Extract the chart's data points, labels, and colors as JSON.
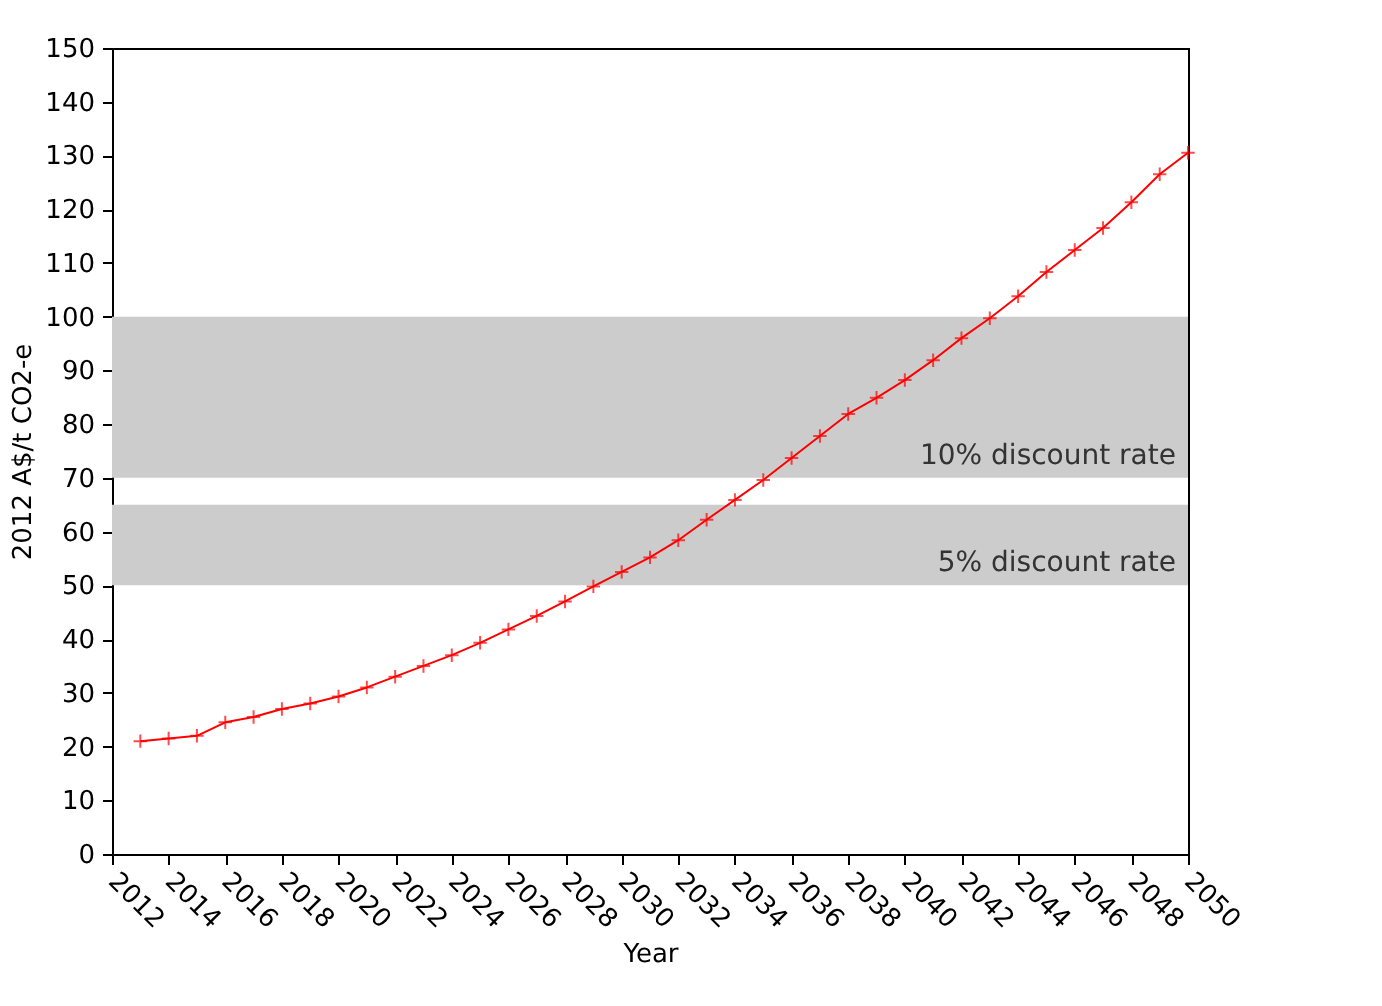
{
  "chart_data": {
    "type": "line",
    "xlabel": "Year",
    "ylabel": "2012 A$/t CO2-e",
    "x": [
      2013,
      2014,
      2015,
      2016,
      2017,
      2018,
      2019,
      2020,
      2021,
      2022,
      2023,
      2024,
      2025,
      2026,
      2027,
      2028,
      2029,
      2030,
      2031,
      2032,
      2033,
      2034,
      2035,
      2036,
      2037,
      2038,
      2039,
      2040,
      2041,
      2042,
      2043,
      2044,
      2045,
      2046,
      2047,
      2048,
      2049,
      2050
    ],
    "series": [
      {
        "color": "#ff0000",
        "values": [
          21,
          21.5,
          22,
          24.5,
          25.5,
          27,
          28,
          29.3,
          31,
          33,
          35,
          37,
          39.3,
          41.8,
          44.3,
          47,
          49.8,
          52.5,
          55.2,
          58.4,
          62.2,
          65.9,
          69.6,
          73.7,
          77.8,
          81.9,
          84.9,
          88.2,
          91.9,
          96,
          99.7,
          103.8,
          108.3,
          112.4,
          116.5,
          121.3,
          126.5,
          130.5
        ]
      }
    ],
    "xlim": [
      2012,
      2050
    ],
    "xticks": [
      2012,
      2014,
      2016,
      2018,
      2020,
      2022,
      2024,
      2026,
      2028,
      2030,
      2032,
      2034,
      2036,
      2038,
      2040,
      2042,
      2044,
      2046,
      2048,
      2050
    ],
    "ylim": [
      0,
      150
    ],
    "yticks": [
      0,
      10,
      20,
      30,
      40,
      50,
      60,
      70,
      80,
      90,
      100,
      110,
      120,
      130,
      140,
      150
    ],
    "bands": [
      {
        "axis": "y",
        "from": 70,
        "to": 100,
        "label": "10% discount rate",
        "color": "#cccccc"
      },
      {
        "axis": "y",
        "from": 50,
        "to": 65,
        "label": "5% discount rate",
        "color": "#cccccc"
      }
    ],
    "marker": "cross",
    "line_style": "solid",
    "grid": false
  }
}
